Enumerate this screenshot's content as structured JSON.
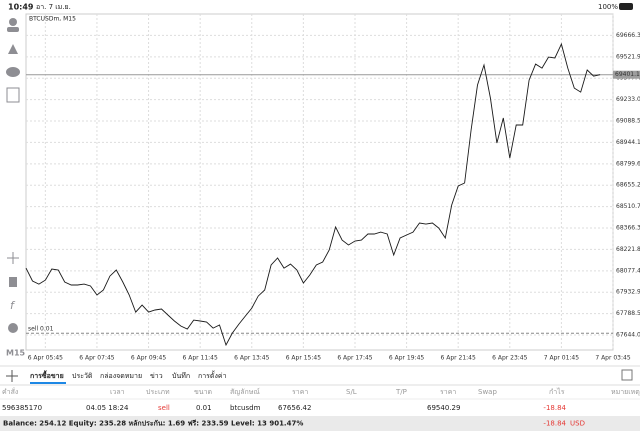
{
  "status_bar": {
    "time": "10:49",
    "date": "อา. 7 เม.ย.",
    "battery": "100%"
  },
  "toolbar": {
    "timeframe": "M15"
  },
  "chart_data": {
    "type": "line",
    "title": "BTCUSDm, M15",
    "color": "#1a1a1a",
    "x": [
      0,
      1,
      2,
      3,
      4,
      5,
      6,
      7,
      8,
      9,
      10,
      11,
      12,
      13,
      14,
      15,
      16,
      17,
      18,
      19,
      20,
      21,
      22,
      23,
      24,
      25,
      26,
      27,
      28,
      29,
      30,
      31,
      32,
      33,
      34,
      35,
      36,
      37,
      38,
      39,
      40,
      41,
      42,
      43,
      44,
      45,
      46,
      47,
      48,
      49,
      50,
      51,
      52,
      53,
      54,
      55,
      56,
      57,
      58,
      59,
      60,
      61,
      62,
      63,
      64,
      65,
      66,
      67,
      68,
      69,
      70,
      71,
      72,
      73,
      74,
      75,
      76,
      77,
      78,
      79,
      80,
      81,
      82,
      83,
      84,
      85,
      86,
      87,
      88,
      89
    ],
    "values": [
      68096,
      68009,
      67988,
      68015,
      68090,
      68083,
      68002,
      67982,
      67982,
      67988,
      67975,
      67914,
      67948,
      68042,
      68083,
      68002,
      67914,
      67799,
      67846,
      67799,
      67813,
      67820,
      67779,
      67739,
      67705,
      67685,
      67745,
      67739,
      67732,
      67691,
      67712,
      67577,
      67658,
      67718,
      67772,
      67826,
      67907,
      67948,
      68117,
      68164,
      68096,
      68123,
      68083,
      67995,
      68049,
      68117,
      68137,
      68218,
      68373,
      68285,
      68252,
      68279,
      68285,
      68326,
      68326,
      68339,
      68326,
      68184,
      68299,
      68319,
      68339,
      68400,
      68393,
      68400,
      68366,
      68299,
      68522,
      68650,
      68670,
      69028,
      69332,
      69467,
      69244,
      68940,
      69109,
      68839,
      69062,
      69062,
      69365,
      69473,
      69446,
      69520,
      69514,
      69608,
      69446,
      69311,
      69284,
      69433,
      69392,
      69401
    ],
    "xlim": [
      0,
      91
    ],
    "xticks": [
      {
        "value": 3,
        "label": "6 Apr 05:45"
      },
      {
        "value": 11,
        "label": "6 Apr 07:45"
      },
      {
        "value": 19,
        "label": "6 Apr 09:45"
      },
      {
        "value": 27,
        "label": "6 Apr 11:45"
      },
      {
        "value": 35,
        "label": "6 Apr 13:45"
      },
      {
        "value": 43,
        "label": "6 Apr 15:45"
      },
      {
        "value": 51,
        "label": "6 Apr 17:45"
      },
      {
        "value": 59,
        "label": "6 Apr 19:45"
      },
      {
        "value": 67,
        "label": "6 Apr 21:45"
      },
      {
        "value": 75,
        "label": "6 Apr 23:45"
      },
      {
        "value": 83,
        "label": "7 Apr 01:45"
      },
      {
        "value": 91,
        "label": "7 Apr 03:45"
      }
    ],
    "ylim": [
      67543,
      69811
    ],
    "yticks": [
      69666.35,
      {
        "value": 69521.9,
        "label": "69521.90"
      },
      69377.45,
      {
        "value": 69233,
        "label": "69233.00"
      },
      69088.55,
      {
        "value": 68944.1,
        "label": "68944.10"
      },
      68799.65,
      {
        "value": 68655.2,
        "label": "68655.20"
      },
      68510.75,
      {
        "value": 68366.3,
        "label": "68366.30"
      },
      68221.85,
      {
        "value": 68077.4,
        "label": "68077.40"
      },
      67932.95,
      {
        "value": 67788.5,
        "label": "67788.50"
      },
      67644.05
    ],
    "grid": true,
    "current_price": 69401.13,
    "order_line": {
      "label": "sell 0.01",
      "value": 67656.42
    }
  },
  "tabs": [
    "การซื้อขาย",
    "ประวัติ",
    "กล่องจดหมาย",
    "ข่าว",
    "บันทึก",
    "การตั้งค่า"
  ],
  "table": {
    "header": [
      "คำสั่ง",
      "เวลา",
      "ประเภท",
      "ขนาด",
      "สัญลักษณ์",
      "ราคา",
      "S/L",
      "T/P",
      "ราคา",
      "Swap",
      "กำไร",
      "หมายเหตุ"
    ],
    "row": {
      "order": 596385170,
      "time": "04.05 18:24",
      "type": "sell",
      "volume": 0.01,
      "symbol": "btcusdm",
      "open_price": 67656.42,
      "price": 69540.29,
      "profit": -18.84
    }
  },
  "footer": {
    "summary": "Balance: 254.12 Equity: 235.28 หลักประกัน: 1.69 ฟรี: 233.59 Level: 13 901.47%",
    "profit": -18.84,
    "currency": "USD"
  }
}
